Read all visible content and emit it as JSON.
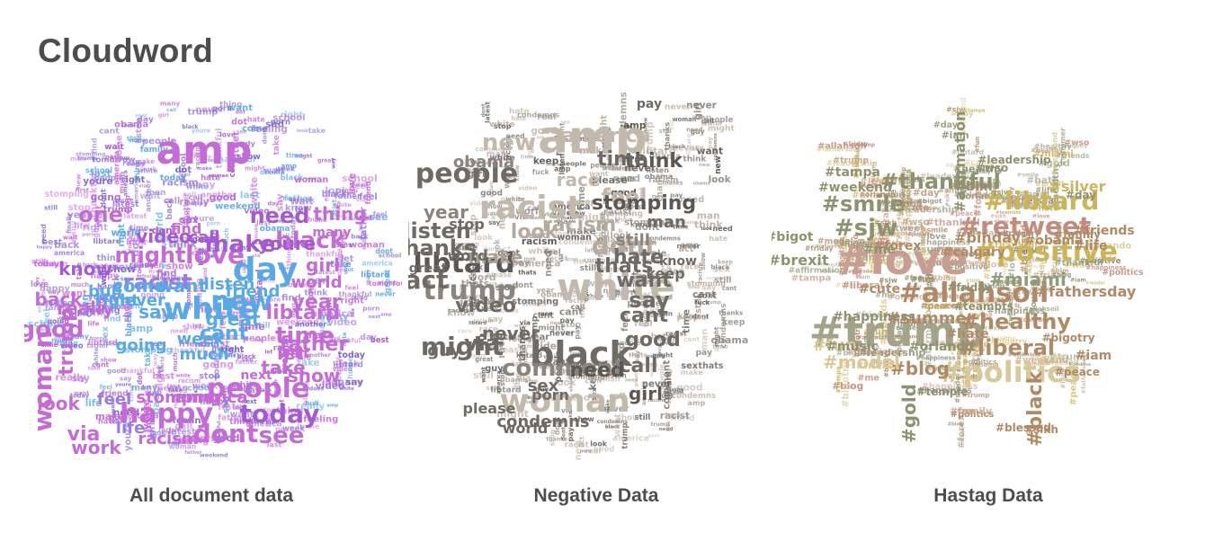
{
  "page": {
    "title": "Cloudword"
  },
  "clouds": [
    {
      "caption": "All document data",
      "words": [
        "amp",
        "love",
        "people",
        "white",
        "day",
        "new",
        "happy",
        "today",
        "dont",
        "see",
        "time",
        "black",
        "racist",
        "make",
        "need",
        "one",
        "might",
        "video",
        "know",
        "back",
        "good",
        "woman",
        "trump",
        "really",
        "look",
        "via",
        "work",
        "feel",
        "life",
        "great",
        "want",
        "say",
        "never",
        "right",
        "going",
        "cant",
        "let",
        "take",
        "father",
        "show",
        "year",
        "libtard",
        "world",
        "girl",
        "many",
        "thing",
        "youre",
        "call",
        "find",
        "listen",
        "friend",
        "come",
        "bull",
        "week",
        "much",
        "racism",
        "stomping",
        "america",
        "wait",
        "next",
        "tomorrow",
        "men",
        "family",
        "obama",
        "best",
        "home",
        "hate",
        "sad",
        "way",
        "thankful",
        "first",
        "think",
        "ready",
        "still",
        "finally",
        "sex",
        "stop",
        "school",
        "dot",
        "another",
        "feeling",
        "latest",
        "last",
        "weekend",
        "porn"
      ]
    },
    {
      "caption": "Negative Data",
      "words": [
        "amp",
        "black",
        "white",
        "racist",
        "people",
        "trump",
        "libtard",
        "woman",
        "might",
        "comment",
        "new",
        "america",
        "obama",
        "race",
        "feel",
        "stomping",
        "think",
        "time",
        "year",
        "listen",
        "great",
        "racism",
        "look",
        "thanks",
        "make",
        "dont",
        "hate",
        "want",
        "say",
        "video",
        "never",
        "cant",
        "call",
        "girl",
        "good",
        "need",
        "via",
        "guy",
        "act",
        "thats",
        "man",
        "world",
        "condemns",
        "porn",
        "sex",
        "pay",
        "stop",
        "word",
        "still",
        "please",
        "know",
        "keep",
        "fuck",
        "real",
        "show",
        "latest"
      ]
    },
    {
      "caption": "Hastag Data",
      "words": [
        "#love",
        "#trump",
        "#allahsoil",
        "#positive",
        "#libtard",
        "#retweet",
        "#politics",
        "#healthy",
        "#liberal",
        "#smile",
        "#sjw",
        "#thankful",
        "#miami",
        "#blog",
        "#model",
        "#black",
        "#fun",
        "#affirmation",
        "#weekend",
        "#tampa",
        "#silver",
        "#summer",
        "#forex",
        "#fathersday",
        "#happiness",
        "#cute",
        "#gold",
        "#bigot",
        "#brexit",
        "#music",
        "#blm",
        "#wso",
        "#leadership",
        "#obama",
        "#family",
        "#life",
        "#friends",
        "#bihday",
        "#calgary",
        "#me",
        "#hate",
        "#orlando",
        "#iam",
        "#peace",
        "#sikh",
        "#day",
        "#friday",
        "#teambts",
        "#temple",
        "#bigotry",
        "#blessed"
      ]
    }
  ],
  "colors": {
    "cloud1": [
      "#c46bd6",
      "#a45bd0",
      "#9a7be0",
      "#5aa8e4",
      "#7a62c9",
      "#d07ee0"
    ],
    "cloud2": [
      "#6e6a66",
      "#8c857f",
      "#a89f96",
      "#c3b8ac",
      "#5b5754",
      "#b5aa9f"
    ],
    "cloud3": [
      "#c89e92",
      "#8f9270",
      "#cbb45a",
      "#b08a66",
      "#a3a38a",
      "#d7c99a",
      "#c48c7c",
      "#909c7c"
    ]
  },
  "icons": {
    "cloud1_mask": "circle-bird-shape",
    "cloud2_mask": "owl-shape",
    "cloud3_mask": "star-burst-shape"
  }
}
